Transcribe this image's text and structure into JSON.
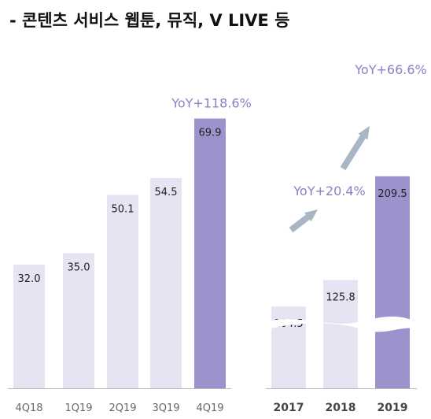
{
  "title": "- 콘텐츠 서비스 웹툰, 뮤직, V LIVE 등",
  "colors": {
    "bar_light": "#e6e3f2",
    "bar_accent": "#9b93cc",
    "yoy_text": "#8c7fc4",
    "arrow": "#a9b6c6",
    "axis": "#bbbbbb"
  },
  "chart_data": [
    {
      "type": "bar",
      "title": "",
      "xlabel": "",
      "ylabel": "",
      "categories": [
        "4Q18",
        "1Q19",
        "2Q19",
        "3Q19",
        "4Q19"
      ],
      "values": [
        32.0,
        35.0,
        50.1,
        54.5,
        69.9
      ],
      "value_labels": [
        "32.0",
        "35.0",
        "50.1",
        "54.5",
        "69.9"
      ],
      "highlight_index": 4,
      "annotation": "YoY+118.6%",
      "ylim": [
        0,
        75
      ]
    },
    {
      "type": "bar",
      "title": "",
      "xlabel": "",
      "ylabel": "",
      "categories": [
        "2017",
        "2018",
        "2019"
      ],
      "values": [
        104.5,
        125.8,
        209.5
      ],
      "value_labels": [
        "104.5",
        "125.8",
        "209.5"
      ],
      "highlight_index": 2,
      "axis_break": true,
      "annotations": [
        "YoY+20.4%",
        "YoY+66.6%"
      ]
    }
  ]
}
